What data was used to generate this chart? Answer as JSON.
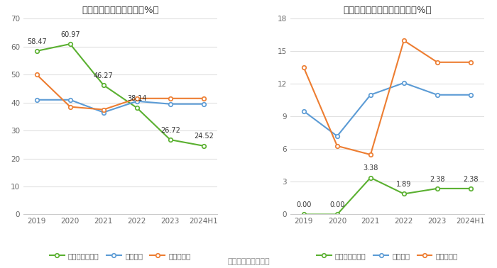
{
  "left_title": "近年来资产负债率情况（%）",
  "right_title": "近年来有息资产负债率情况（%）",
  "x_labels": [
    "2019",
    "2020",
    "2021",
    "2022",
    "2023",
    "2024H1"
  ],
  "left": {
    "company": [
      58.47,
      60.97,
      46.27,
      38.14,
      26.72,
      24.52
    ],
    "industry_mean": [
      41.0,
      41.0,
      36.5,
      40.5,
      39.5,
      39.5
    ],
    "industry_median": [
      50.0,
      38.5,
      37.5,
      41.5,
      41.5,
      41.5
    ],
    "company_label": "公司资产负债率",
    "mean_label": "行业均值",
    "median_label": "行业中位数",
    "ylim": [
      0,
      70
    ],
    "yticks": [
      0,
      10,
      20,
      30,
      40,
      50,
      60,
      70
    ]
  },
  "right": {
    "company": [
      0.0,
      0.0,
      3.38,
      1.89,
      2.38,
      2.38
    ],
    "industry_mean": [
      9.5,
      7.2,
      11.0,
      12.1,
      11.0,
      11.0
    ],
    "industry_median": [
      13.5,
      6.3,
      5.5,
      16.0,
      14.0,
      14.0
    ],
    "company_label": "有息资产负债率",
    "mean_label": "行业均值",
    "median_label": "行业中位数",
    "ylim": [
      0,
      18
    ],
    "yticks": [
      0,
      3,
      6,
      9,
      12,
      15,
      18
    ]
  },
  "source_text": "数据来源：恒生聚源",
  "colors": {
    "green": "#5ab030",
    "blue": "#5b9bd5",
    "orange": "#ed7d31"
  },
  "background_color": "#ffffff",
  "grid_color": "#e0e0e0"
}
